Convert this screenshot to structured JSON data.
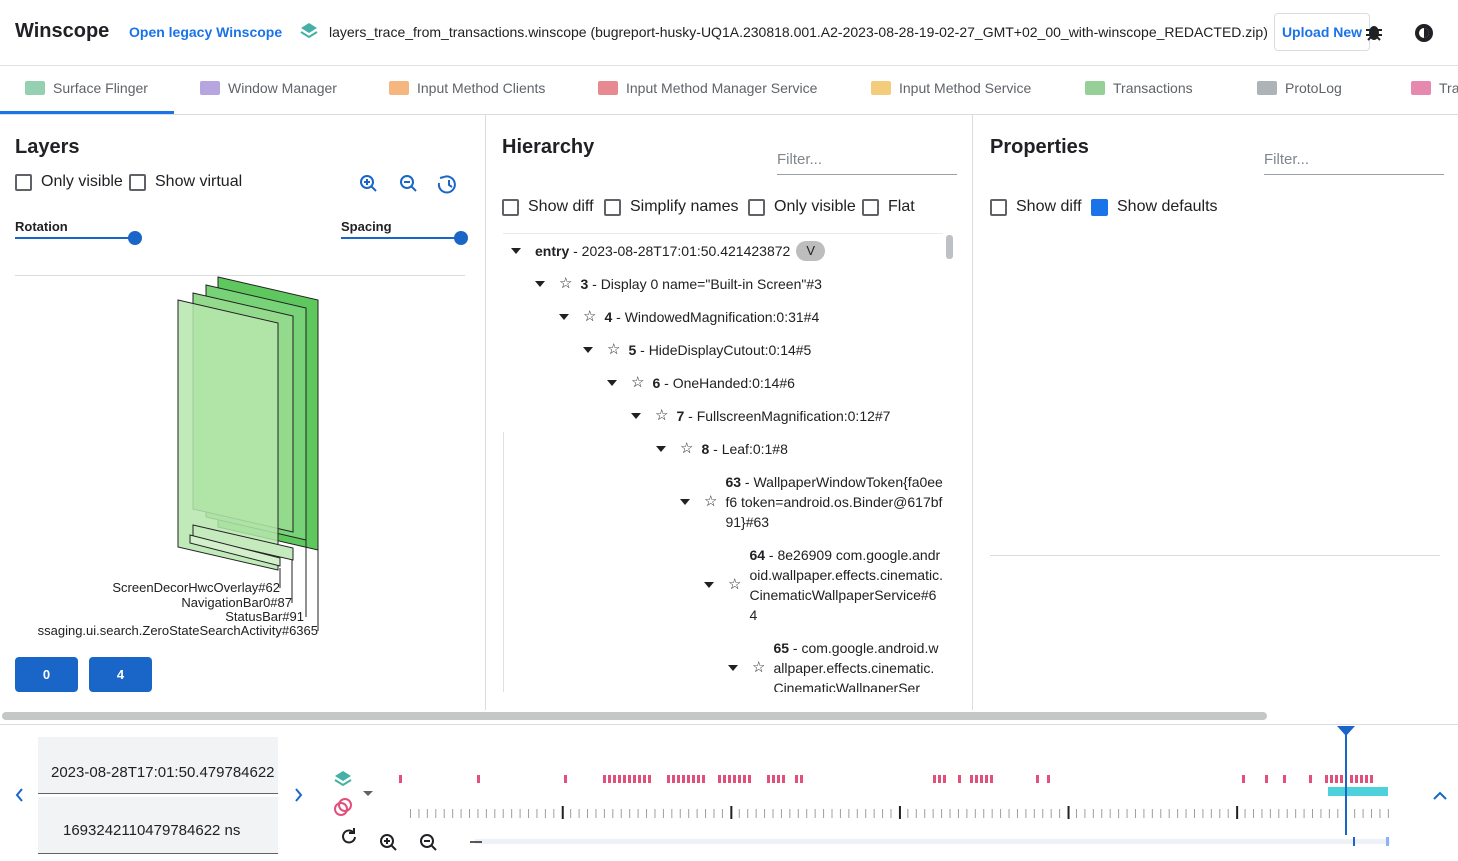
{
  "header": {
    "title": "Winscope",
    "legacy_link": "Open legacy Winscope",
    "file_name": "layers_trace_from_transactions.winscope (bugreport-husky-UQ1A.230818.001.A2-2023-08-28-19-02-27_GMT+02_00_with-winscope_REDACTED.zip)",
    "upload_button": "Upload New"
  },
  "tabs": [
    "Surface Flinger",
    "Window Manager",
    "Input Method Clients",
    "Input Method Manager Service",
    "Input Method Service",
    "Transactions",
    "ProtoLog",
    "Tra"
  ],
  "layers": {
    "title": "Layers",
    "options": [
      {
        "label": "Only visible",
        "checked": false
      },
      {
        "label": "Show virtual",
        "checked": false
      }
    ],
    "sliders": [
      "Rotation",
      "Spacing"
    ],
    "layer_labels": [
      "ScreenDecorHwcOverlay#62",
      "NavigationBar0#87",
      "StatusBar#91",
      "ssaging.ui.search.ZeroStateSearchActivity#6365"
    ],
    "displays": [
      "0",
      "4"
    ]
  },
  "hierarchy": {
    "title": "Hierarchy",
    "filter_placeholder": "Filter...",
    "options": [
      {
        "label": "Show diff",
        "checked": false
      },
      {
        "label": "Simplify names",
        "checked": false
      },
      {
        "label": "Only visible",
        "checked": false
      },
      {
        "label": "Flat",
        "checked": false
      }
    ],
    "tree": {
      "label": "entry - 2023-08-28T17:01:50.421423872",
      "badge": "V",
      "children": [
        {
          "label": "3 - Display 0 name=\"Built-in Screen\"#3",
          "children": [
            {
              "label": "4 - WindowedMagnification:0:31#4",
              "children": [
                {
                  "label": "5 - HideDisplayCutout:0:14#5",
                  "children": [
                    {
                      "label": "6 - OneHanded:0:14#6",
                      "children": [
                        {
                          "label": "7 - FullscreenMagnification:0:12#7",
                          "children": [
                            {
                              "label": "8 - Leaf:0:1#8",
                              "children": [
                                {
                                  "label": "63 - WallpaperWindowToken{fa0eef6 token=android.os.Binder@617bf91}#63",
                                  "children": [
                                    {
                                      "label": "64 - 8e26909 com.google.android.wallpaper.effects.cinematic.CinematicWallpaperService#64",
                                      "children": [
                                        {
                                          "label": "65 - com.google.android.wallpaper.effects.cinematic.CinematicWallpaperSer",
                                          "children": []
                                        }
                                      ]
                                    }
                                  ]
                                }
                              ]
                            }
                          ]
                        }
                      ]
                    }
                  ]
                }
              ]
            }
          ]
        }
      ]
    }
  },
  "properties": {
    "title": "Properties",
    "filter_placeholder": "Filter...",
    "options": [
      {
        "label": "Show diff",
        "checked": false
      },
      {
        "label": "Show defaults",
        "checked": true
      }
    ]
  },
  "timeline": {
    "timestamp": "2023-08-28T17:01:50.479784622",
    "timestamp_ns": "1693242110479784622 ns"
  }
}
